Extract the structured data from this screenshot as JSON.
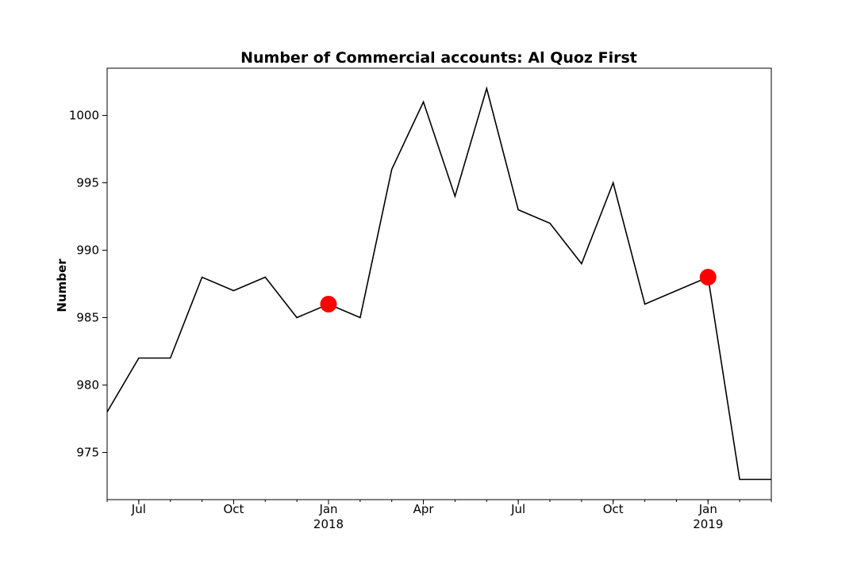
{
  "chart_data": {
    "type": "line",
    "title": "Number of Commercial accounts: Al Quoz First",
    "xlabel": "",
    "ylabel": "Number",
    "x": [
      "2017-05",
      "2017-06",
      "2017-07",
      "2017-08",
      "2017-09",
      "2017-10",
      "2017-11",
      "2017-12",
      "2018-01",
      "2018-02",
      "2018-03",
      "2018-04",
      "2018-05",
      "2018-06",
      "2018-07",
      "2018-08",
      "2018-09",
      "2018-10",
      "2018-11",
      "2018-12",
      "2019-01",
      "2019-02"
    ],
    "xlim": [
      "2017-05",
      "2019-02"
    ],
    "ylim": [
      971.5,
      1003.5
    ],
    "series": [
      {
        "color": "#000000",
        "values": [
          978,
          982,
          982,
          988,
          987,
          988,
          985,
          986,
          985,
          996,
          1001,
          994,
          1002,
          993,
          992,
          989,
          995,
          986,
          987,
          988,
          973,
          973
        ]
      }
    ],
    "series_values_end_index": 20,
    "highlight_points": [
      {
        "x": "2017-12",
        "y": 986,
        "color": "#ff0000"
      },
      {
        "x": "2018-12",
        "y": 988,
        "color": "#ff0000"
      }
    ],
    "x_ticks": [
      {
        "x": "2017-06",
        "label": "Jul",
        "sublabel": ""
      },
      {
        "x": "2017-09",
        "label": "Oct",
        "sublabel": ""
      },
      {
        "x": "2017-12",
        "label": "Jan",
        "sublabel": "2018"
      },
      {
        "x": "2018-03",
        "label": "Apr",
        "sublabel": ""
      },
      {
        "x": "2018-06",
        "label": "Jul",
        "sublabel": ""
      },
      {
        "x": "2018-09",
        "label": "Oct",
        "sublabel": ""
      },
      {
        "x": "2018-12",
        "label": "Jan",
        "sublabel": "2019"
      }
    ],
    "y_ticks": [
      975,
      980,
      985,
      990,
      995,
      1000
    ],
    "grid": false,
    "legend": "none"
  }
}
